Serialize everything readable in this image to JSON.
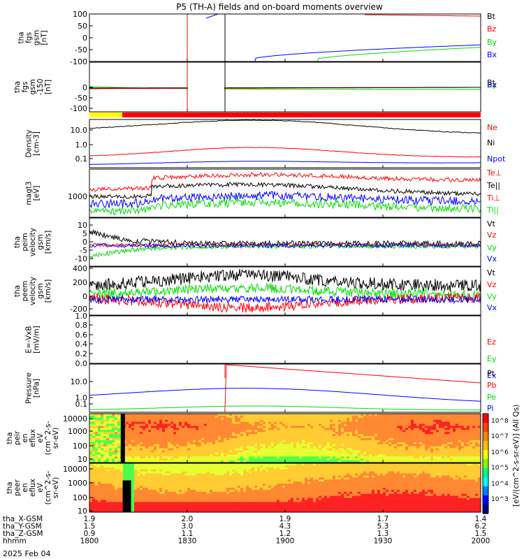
{
  "title": "P5 (TH-A) fields and on-board moments overview",
  "date_label": "2025 Feb 04",
  "colors": {
    "black": "#000000",
    "red": "#ff0000",
    "green": "#00dd00",
    "blue": "#0000ff",
    "yellow": "#ffff00"
  },
  "state_bar": {
    "segments": [
      {
        "from": "1800",
        "to": "1815",
        "color": "yellow"
      },
      {
        "from": "1815",
        "to": "2000",
        "color": "red"
      }
    ]
  },
  "orbit_table": {
    "rows": [
      {
        "label": "tha_X-GSM",
        "values": [
          "1.9",
          "2.0",
          "1.9",
          "1.7",
          "1.4"
        ]
      },
      {
        "label": "tha_Y-GSM",
        "values": [
          "1.5",
          "3.0",
          "4.3",
          "5.3",
          "6.2"
        ]
      },
      {
        "label": "tha_Z-GSM",
        "values": [
          "0.9",
          "1.1",
          "1.2",
          "1.3",
          "1.5"
        ]
      },
      {
        "label": "hhmm",
        "values": [
          "1800",
          "1830",
          "1900",
          "1930",
          "2000"
        ]
      }
    ]
  },
  "colorbar": {
    "label": "[eV/(cm^2-s-sr-eV)] (All Qs)",
    "tick_labels": [
      "10^3",
      "10^4",
      "10^5",
      "10^6",
      "10^7",
      "10^8"
    ]
  },
  "chart_data": [
    {
      "id": "fgs",
      "type": "line",
      "panel_label": [
        "tha",
        "fgs",
        "gsm",
        "[nT]"
      ],
      "x_range": [
        "1800",
        "2000"
      ],
      "ylim": [
        -100,
        100
      ],
      "yticks": [
        "100",
        "50",
        "0",
        "-50",
        "-100"
      ],
      "legend": [
        {
          "name": "Bt",
          "color": "black"
        },
        {
          "name": "Bz",
          "color": "red"
        },
        {
          "name": "By",
          "color": "green"
        },
        {
          "name": "Bx",
          "color": "blue"
        }
      ]
    },
    {
      "id": "fgs_zoom",
      "type": "line",
      "panel_label": [
        "tha",
        "fgs",
        "gsm",
        "-150",
        "[nT]"
      ],
      "ylim": [
        -120,
        20
      ],
      "yticks": [
        "0",
        "-50",
        "-100"
      ],
      "legend": [
        {
          "name": "Bt",
          "color": "black"
        },
        {
          "name": "Bz",
          "color": "red"
        },
        {
          "name": "By",
          "color": "green"
        },
        {
          "name": "Bx",
          "color": "blue"
        }
      ]
    },
    {
      "id": "density",
      "type": "line",
      "panel_label": [
        "Density",
        "[cm-3]"
      ],
      "scale": "log",
      "yticks": [
        "10.0",
        "1.0",
        "0.1"
      ],
      "legend": [
        {
          "name": "Ne",
          "color": "red"
        },
        {
          "name": "Ni",
          "color": "black"
        },
        {
          "name": "Npot",
          "color": "blue"
        }
      ]
    },
    {
      "id": "temperature",
      "type": "line",
      "panel_label": [
        "magt3",
        "[eV]"
      ],
      "scale": "log",
      "yticks": [
        "1000"
      ],
      "legend": [
        {
          "name": "Te⊥",
          "color": "red"
        },
        {
          "name": "Te||",
          "color": "black"
        },
        {
          "name": "Ti⊥",
          "color": "red"
        },
        {
          "name": "Ti||",
          "color": "green"
        }
      ]
    },
    {
      "id": "ion_velocity",
      "type": "line",
      "panel_label": [
        "tha",
        "peim",
        "velocity",
        "gsm",
        "[km/s]"
      ],
      "ylim": [
        -12,
        14
      ],
      "yticks": [
        "10",
        "5",
        "0",
        "-5",
        "-10"
      ],
      "legend": [
        {
          "name": "Vt",
          "color": "black"
        },
        {
          "name": "Vz",
          "color": "red"
        },
        {
          "name": "Vy",
          "color": "green"
        },
        {
          "name": "Vx",
          "color": "blue"
        }
      ]
    },
    {
      "id": "electron_velocity",
      "type": "line",
      "panel_label": [
        "tha",
        "peem",
        "velocity",
        "gsm",
        "[km/s]"
      ],
      "ylim": [
        -280,
        420
      ],
      "yticks": [
        "400",
        "200",
        "0",
        "-200"
      ],
      "legend": [
        {
          "name": "Vt",
          "color": "black"
        },
        {
          "name": "Vz",
          "color": "red"
        },
        {
          "name": "Vy",
          "color": "green"
        },
        {
          "name": "Vx",
          "color": "blue"
        }
      ]
    },
    {
      "id": "efield",
      "type": "line",
      "panel_label": [
        "E=-VxB",
        "[mV/m]"
      ],
      "ylim": [
        0,
        1
      ],
      "yticks": [
        "1.0",
        "0.8",
        "0.6",
        "0.4",
        "0.2",
        "0.0"
      ],
      "legend": [
        {
          "name": "Ez",
          "color": "red"
        },
        {
          "name": "Ey",
          "color": "green"
        },
        {
          "name": "Ex",
          "color": "blue"
        }
      ]
    },
    {
      "id": "pressure",
      "type": "line",
      "panel_label": [
        "Pressure",
        "[nPa]"
      ],
      "scale": "log",
      "yticks": [
        "10.0",
        "1.0",
        "0.1"
      ],
      "legend": [
        {
          "name": "Pt",
          "color": "black"
        },
        {
          "name": "Pb",
          "color": "red"
        },
        {
          "name": "Pe",
          "color": "green"
        },
        {
          "name": "Pi",
          "color": "blue"
        }
      ]
    },
    {
      "id": "ion_spectrogram",
      "type": "heatmap",
      "panel_label": [
        "tha",
        "peir",
        "en",
        "eflux",
        "eV",
        "(cm^2-s-",
        "sr-eV)"
      ],
      "scale": "log",
      "yticks": [
        "10000",
        "1000",
        "100",
        "10"
      ]
    },
    {
      "id": "electron_spectrogram",
      "type": "heatmap",
      "panel_label": [
        "tha",
        "peer",
        "en",
        "eflux",
        "eV",
        "(cm^2-s-",
        "sr-eV)"
      ],
      "scale": "log",
      "yticks": [
        "10000",
        "1000",
        "100",
        "10"
      ]
    }
  ]
}
